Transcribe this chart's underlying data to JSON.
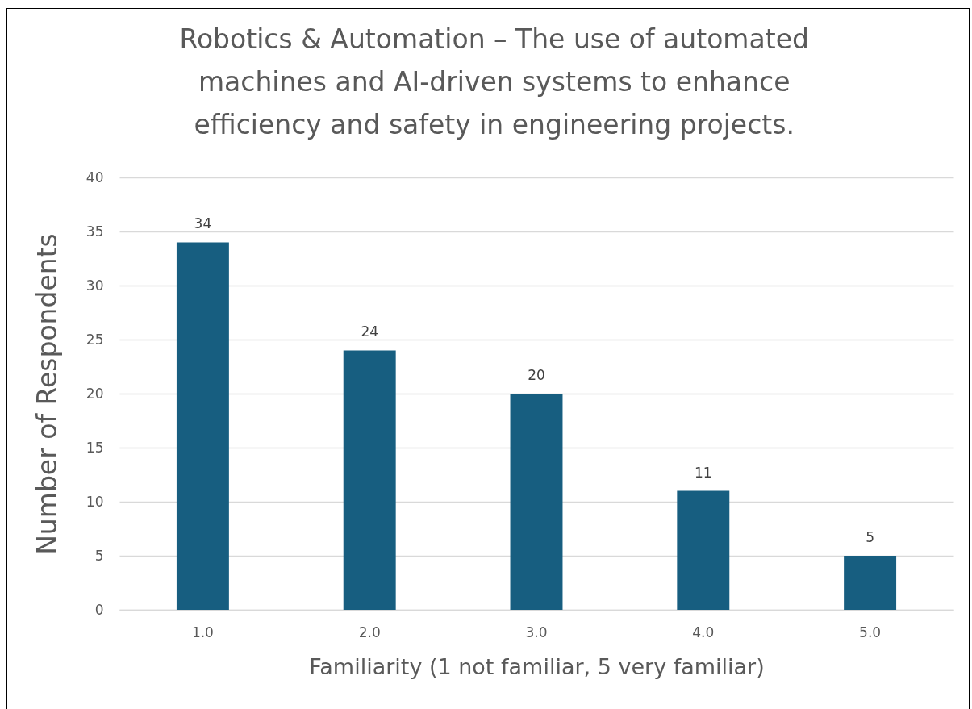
{
  "chart_data": {
    "type": "bar",
    "title": "Robotics & Automation – The use of automated machines and AI-driven systems to enhance efficiency and safety in engineering projects.",
    "xlabel": "Familiarity (1 not familiar, 5 very familiar)",
    "ylabel": "Number of Respondents",
    "categories": [
      "1.0",
      "2.0",
      "3.0",
      "4.0",
      "5.0"
    ],
    "values": [
      34,
      24,
      20,
      11,
      5
    ],
    "color": "#175e80",
    "ylim": [
      0,
      40
    ],
    "yticks": [
      0,
      5,
      10,
      15,
      20,
      25,
      30,
      35,
      40
    ],
    "grid": "y",
    "data_labels": true
  }
}
